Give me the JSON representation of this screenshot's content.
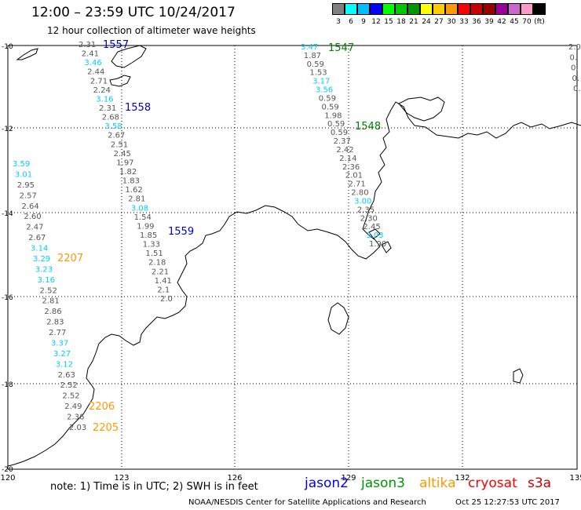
{
  "title": "12:00 – 23:59 UTC 10/24/2017",
  "subtitle": "12 hour collection of altimeter wave heights",
  "legend": {
    "unit": "(ft)",
    "bins": [
      {
        "label": "3",
        "color": "#808080"
      },
      {
        "label": "6",
        "color": "#00ffff"
      },
      {
        "label": "9",
        "color": "#00bfff"
      },
      {
        "label": "12",
        "color": "#0000ff"
      },
      {
        "label": "15",
        "color": "#00ff00"
      },
      {
        "label": "18",
        "color": "#00c800"
      },
      {
        "label": "21",
        "color": "#009600"
      },
      {
        "label": "24",
        "color": "#ffff00"
      },
      {
        "label": "27",
        "color": "#ffcc00"
      },
      {
        "label": "30",
        "color": "#ff9900"
      },
      {
        "label": "33",
        "color": "#ff0000"
      },
      {
        "label": "36",
        "color": "#cc0000"
      },
      {
        "label": "39",
        "color": "#990000"
      },
      {
        "label": "42",
        "color": "#990099"
      },
      {
        "label": "45",
        "color": "#cc66cc"
      },
      {
        "label": "70",
        "color": "#ff99cc"
      },
      {
        "label": "",
        "color": "#000000"
      }
    ]
  },
  "axes": {
    "lon_ticks": [
      "120",
      "123",
      "126",
      "129",
      "132",
      "135"
    ],
    "lat_ticks": [
      "-10",
      "-12",
      "-14",
      "-16",
      "-18",
      "-20"
    ]
  },
  "passes": [
    {
      "label": "1557",
      "color": "#0000c8"
    },
    {
      "label": "1558",
      "color": "#0000c8"
    },
    {
      "label": "1559",
      "color": "#0000c8"
    },
    {
      "label": "1547",
      "color": "#008000"
    },
    {
      "label": "1548",
      "color": "#008000"
    },
    {
      "label": "2207",
      "color": "#ff9900"
    },
    {
      "label": "2206",
      "color": "#ff9900"
    },
    {
      "label": "2205",
      "color": "#ff9900"
    }
  ],
  "track_values": {
    "t1557": [
      "2.31",
      "2.41",
      "3.46",
      "2.44",
      "2.71",
      "2.24",
      "3.16",
      "2.31",
      "2.68",
      "3.58",
      "2.67",
      "2.51",
      "2.45",
      "1.97",
      "1.82",
      "1.83",
      "1.62",
      "2.81",
      "3.08",
      "1.54",
      "1.99",
      "1.85",
      "1.33",
      "1.51",
      "2.18",
      "2.21",
      "1.41",
      "2.1",
      "2.0"
    ],
    "t1547": [
      "3.47",
      "1.87",
      "0.59",
      "1.53",
      "3.17",
      "3.56",
      "0.59",
      "0.59",
      "1.98",
      "0.59",
      "0.59",
      "2.37",
      "2.42",
      "2.14",
      "2.36",
      "2.01",
      "2.71",
      "2.80",
      "3.00",
      "2.35",
      "2.30",
      "2.45",
      "3.03",
      "1.90"
    ],
    "t2207": [
      "3.59",
      "3.01",
      "2.95",
      "2.57",
      "2.64",
      "2.60",
      "2.47",
      "2.67",
      "3.14",
      "3.29",
      "3.23",
      "3.16",
      "2.52",
      "2.81",
      "2.86",
      "2.83",
      "2.77",
      "3.37",
      "3.27",
      "3.12",
      "2.63",
      "2.52",
      "2.52",
      "2.49",
      "2.36",
      "2.03"
    ],
    "edge": [
      "2.0",
      "0.",
      "0.",
      "0.",
      "0."
    ]
  },
  "note": "note:  1) Time is in UTC;  2) SWH is in feet",
  "missions": [
    {
      "name": "jason2",
      "color": "#0000ff"
    },
    {
      "name": "jason3",
      "color": "#009600"
    },
    {
      "name": "altika",
      "color": "#ff9900"
    },
    {
      "name": "cryosat",
      "color": "#ff0000"
    },
    {
      "name": "s3a",
      "color": "#cc0000"
    }
  ],
  "credit": "NOAA/NESDIS Center for Satellite Applications and Research",
  "timestamp": "Oct 25 12:27:53 UTC 2017"
}
